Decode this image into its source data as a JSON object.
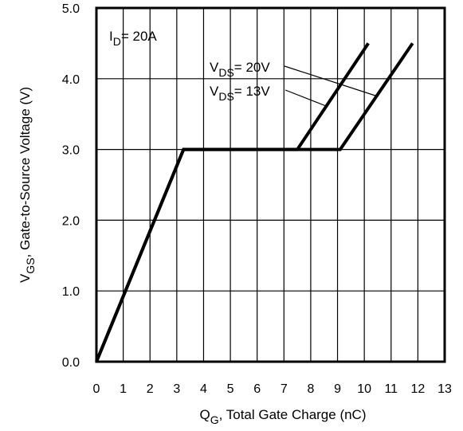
{
  "chart_data": {
    "type": "line",
    "xlabel": {
      "main": "Q",
      "sub": "G",
      "rest": ",  Total Gate Charge (nC)"
    },
    "ylabel": {
      "main": "V",
      "sub": "GS",
      "rest": ", Gate-to-Source Voltage (V)"
    },
    "xlim": [
      0,
      13
    ],
    "ylim": [
      0,
      5
    ],
    "xticks": [
      0,
      1,
      2,
      3,
      4,
      5,
      6,
      7,
      8,
      9,
      10,
      11,
      12,
      13
    ],
    "yticks": [
      0,
      1,
      2,
      3,
      4,
      5
    ],
    "yticklabels": [
      "0.0",
      "1.0",
      "2.0",
      "3.0",
      "4.0",
      "5.0"
    ],
    "grid": true,
    "condition": {
      "main": "I",
      "sub": "D",
      "rest": "= 20A"
    },
    "series": [
      {
        "name": {
          "main": "V",
          "sub": "DS",
          "rest": "= 20V"
        },
        "x": [
          0,
          3.25,
          9.1,
          11.8
        ],
        "y": [
          0,
          3.0,
          3.0,
          4.5
        ]
      },
      {
        "name": {
          "main": "V",
          "sub": "DS",
          "rest": "= 13V"
        },
        "x": [
          0,
          3.25,
          7.5,
          10.15
        ],
        "y": [
          0,
          3.0,
          3.0,
          4.5
        ]
      }
    ]
  }
}
